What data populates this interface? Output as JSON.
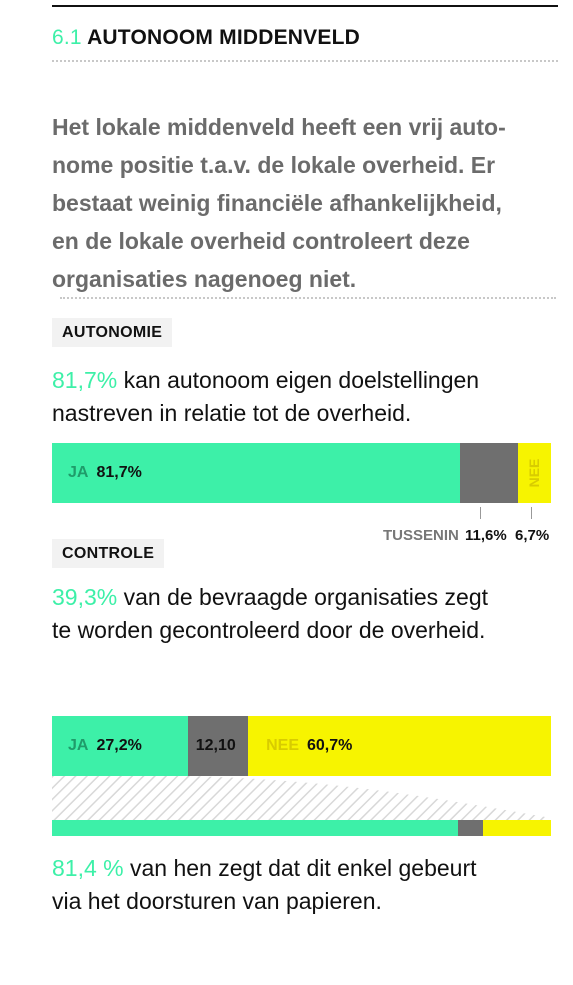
{
  "section": {
    "number": "6.1",
    "title": "AUTONOOM MIDDENVELD"
  },
  "intro": [
    "Het lokale middenveld heeft een vrij auto-",
    "nome positie t.a.v. de lokale overheid. Er",
    "bestaat weinig financiële afhankelijkheid,",
    "en de lokale overheid controleert deze",
    "organisaties nagenoeg niet."
  ],
  "autonomie": {
    "tag": "AUTONOMIE",
    "pct": "81,7%",
    "line1_rest": " kan autonoom eigen doelstellingen",
    "line2": "nastreven in relatie tot de overheid."
  },
  "controle": {
    "tag": "CONTROLE",
    "pct": "39,3%",
    "line1_rest": " van de bevraagde organisaties zegt",
    "line2": "te worden gecontroleerd door de overheid."
  },
  "papieren": {
    "pct": "81,4 %",
    "line1_rest": " van hen zegt dat dit enkel gebeurt",
    "line2": "via het doorsturen van papieren."
  },
  "colors": {
    "ja": "#3df0a8",
    "tussenin": "#6f6f6f",
    "nee": "#f7f400",
    "text_muted": "#6b6b6b"
  },
  "chart_data": [
    {
      "type": "bar",
      "orientation": "horizontal-stacked",
      "series": [
        {
          "name": "JA",
          "label": "81,7%",
          "value": 81.7,
          "color": "#3df0a8"
        },
        {
          "name": "TUSSENIN",
          "label": "11,6%",
          "value": 11.6,
          "color": "#6f6f6f"
        },
        {
          "name": "NEE",
          "label": "6,7%",
          "value": 6.7,
          "color": "#f7f400"
        }
      ]
    },
    {
      "type": "bar",
      "orientation": "horizontal-stacked",
      "series": [
        {
          "name": "JA",
          "label": "27,2%",
          "value": 27.2,
          "color": "#3df0a8"
        },
        {
          "name": "",
          "label": "12,10",
          "value": 12.1,
          "color": "#6f6f6f"
        },
        {
          "name": "NEE",
          "label": "60,7%",
          "value": 60.7,
          "color": "#f7f400"
        }
      ]
    },
    {
      "type": "bar",
      "orientation": "horizontal-stacked",
      "series": [
        {
          "value": 81.4,
          "color": "#3df0a8"
        },
        {
          "value": 5.0,
          "color": "#6f6f6f"
        },
        {
          "value": 13.6,
          "color": "#f7f400"
        }
      ]
    }
  ]
}
